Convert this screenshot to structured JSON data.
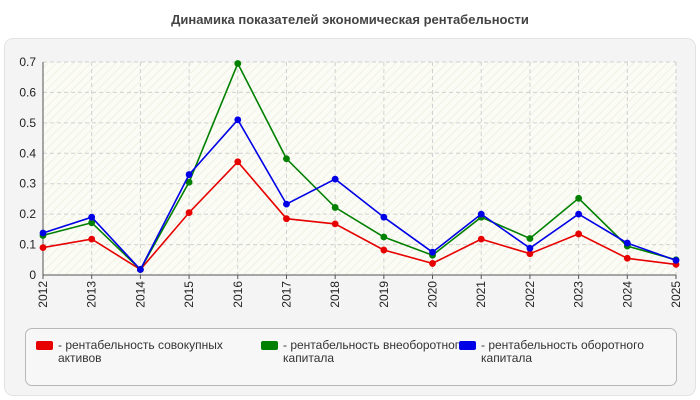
{
  "chart_data": {
    "type": "line",
    "title": "Динамика показателей экономическая рентабельности",
    "x": [
      "2012",
      "2013",
      "2014",
      "2015",
      "2016",
      "2017",
      "2018",
      "2019",
      "2020",
      "2021",
      "2022",
      "2023",
      "2024",
      "2025"
    ],
    "ylim": [
      0,
      0.7
    ],
    "yticks": [
      "0",
      "0.1",
      "0.2",
      "0.3",
      "0.4",
      "0.5",
      "0.6",
      "0.7"
    ],
    "grid": true,
    "legend_position": "bottom",
    "series": [
      {
        "name": "- рентабельность совокупных активов",
        "color": "#e60000",
        "values": [
          0.09,
          0.118,
          0.018,
          0.205,
          0.372,
          0.185,
          0.168,
          0.082,
          0.038,
          0.118,
          0.07,
          0.135,
          0.055,
          0.035
        ]
      },
      {
        "name": "- рентабельность внеоборотного капитала",
        "color": "#008000",
        "values": [
          0.13,
          0.172,
          0.018,
          0.305,
          0.695,
          0.382,
          0.222,
          0.125,
          0.065,
          0.19,
          0.12,
          0.252,
          0.095,
          0.05
        ]
      },
      {
        "name": "- рентабельность оборотного капитала",
        "color": "#0000e6",
        "values": [
          0.138,
          0.19,
          0.018,
          0.33,
          0.51,
          0.233,
          0.315,
          0.19,
          0.075,
          0.2,
          0.088,
          0.2,
          0.105,
          0.048
        ]
      }
    ]
  }
}
